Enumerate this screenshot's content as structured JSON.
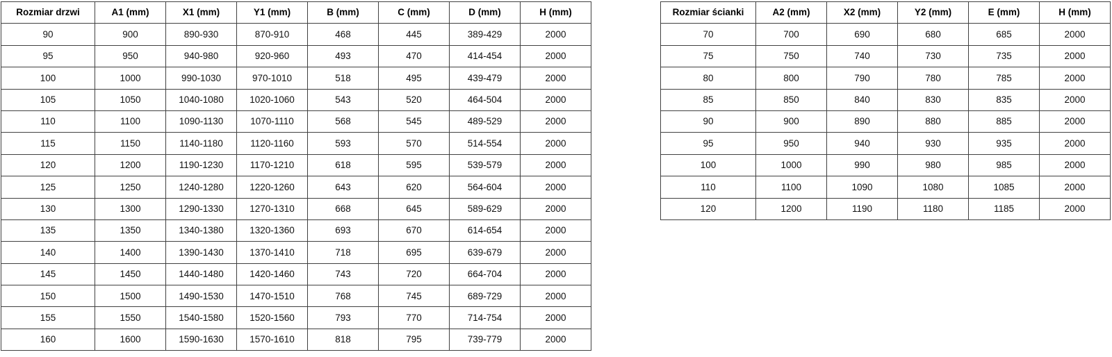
{
  "colors": {
    "background": "#ffffff",
    "table_border": "#404040",
    "text": "#111111"
  },
  "tables": {
    "door": {
      "name": "door-dimensions",
      "headers": [
        "Rozmiar drzwi",
        "A1 (mm)",
        "X1 (mm)",
        "Y1 (mm)",
        "B (mm)",
        "C (mm)",
        "D (mm)",
        "H (mm)"
      ],
      "rows": [
        [
          "90",
          "900",
          "890-930",
          "870-910",
          "468",
          "445",
          "389-429",
          "2000"
        ],
        [
          "95",
          "950",
          "940-980",
          "920-960",
          "493",
          "470",
          "414-454",
          "2000"
        ],
        [
          "100",
          "1000",
          "990-1030",
          "970-1010",
          "518",
          "495",
          "439-479",
          "2000"
        ],
        [
          "105",
          "1050",
          "1040-1080",
          "1020-1060",
          "543",
          "520",
          "464-504",
          "2000"
        ],
        [
          "110",
          "1100",
          "1090-1130",
          "1070-1110",
          "568",
          "545",
          "489-529",
          "2000"
        ],
        [
          "115",
          "1150",
          "1140-1180",
          "1120-1160",
          "593",
          "570",
          "514-554",
          "2000"
        ],
        [
          "120",
          "1200",
          "1190-1230",
          "1170-1210",
          "618",
          "595",
          "539-579",
          "2000"
        ],
        [
          "125",
          "1250",
          "1240-1280",
          "1220-1260",
          "643",
          "620",
          "564-604",
          "2000"
        ],
        [
          "130",
          "1300",
          "1290-1330",
          "1270-1310",
          "668",
          "645",
          "589-629",
          "2000"
        ],
        [
          "135",
          "1350",
          "1340-1380",
          "1320-1360",
          "693",
          "670",
          "614-654",
          "2000"
        ],
        [
          "140",
          "1400",
          "1390-1430",
          "1370-1410",
          "718",
          "695",
          "639-679",
          "2000"
        ],
        [
          "145",
          "1450",
          "1440-1480",
          "1420-1460",
          "743",
          "720",
          "664-704",
          "2000"
        ],
        [
          "150",
          "1500",
          "1490-1530",
          "1470-1510",
          "768",
          "745",
          "689-729",
          "2000"
        ],
        [
          "155",
          "1550",
          "1540-1580",
          "1520-1560",
          "793",
          "770",
          "714-754",
          "2000"
        ],
        [
          "160",
          "1600",
          "1590-1630",
          "1570-1610",
          "818",
          "795",
          "739-779",
          "2000"
        ]
      ]
    },
    "wall": {
      "name": "wall-panel-dimensions",
      "headers": [
        "Rozmiar ścianki",
        "A2 (mm)",
        "X2 (mm)",
        "Y2 (mm)",
        "E (mm)",
        "H (mm)"
      ],
      "rows": [
        [
          "70",
          "700",
          "690",
          "680",
          "685",
          "2000"
        ],
        [
          "75",
          "750",
          "740",
          "730",
          "735",
          "2000"
        ],
        [
          "80",
          "800",
          "790",
          "780",
          "785",
          "2000"
        ],
        [
          "85",
          "850",
          "840",
          "830",
          "835",
          "2000"
        ],
        [
          "90",
          "900",
          "890",
          "880",
          "885",
          "2000"
        ],
        [
          "95",
          "950",
          "940",
          "930",
          "935",
          "2000"
        ],
        [
          "100",
          "1000",
          "990",
          "980",
          "985",
          "2000"
        ],
        [
          "110",
          "1100",
          "1090",
          "1080",
          "1085",
          "2000"
        ],
        [
          "120",
          "1200",
          "1190",
          "1180",
          "1185",
          "2000"
        ]
      ]
    }
  }
}
